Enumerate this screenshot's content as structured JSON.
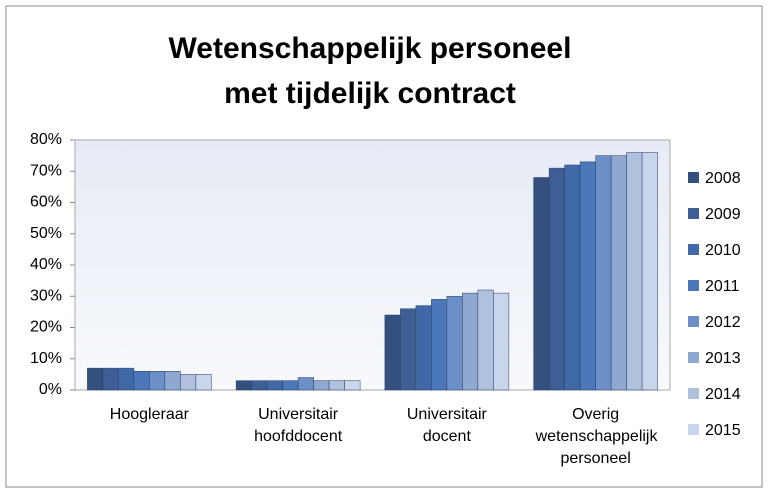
{
  "chart_data": {
    "type": "bar",
    "title": [
      "Wetenschappelijk personeel",
      "met tijdelijk contract"
    ],
    "categories": [
      "Hoogleraar",
      "Universitair hoofddocent",
      "Universitair docent",
      "Overig wetenschappelijk personeel"
    ],
    "series": [
      {
        "name": "2008",
        "color": "#34507f",
        "values": [
          7,
          3,
          24,
          68
        ]
      },
      {
        "name": "2009",
        "color": "#3d5f96",
        "values": [
          7,
          3,
          26,
          71
        ]
      },
      {
        "name": "2010",
        "color": "#4169a8",
        "values": [
          7,
          3,
          27,
          72
        ]
      },
      {
        "name": "2011",
        "color": "#4a78b9",
        "values": [
          6,
          3,
          29,
          73
        ]
      },
      {
        "name": "2012",
        "color": "#6c8fc7",
        "values": [
          6,
          4,
          30,
          75
        ]
      },
      {
        "name": "2013",
        "color": "#8fa8d0",
        "values": [
          6,
          3,
          31,
          75
        ]
      },
      {
        "name": "2014",
        "color": "#b0c1de",
        "values": [
          5,
          3,
          32,
          76
        ]
      },
      {
        "name": "2015",
        "color": "#c9d5ea",
        "values": [
          5,
          3,
          31,
          76
        ]
      }
    ],
    "ylim": [
      0,
      80
    ],
    "yticks": [
      {
        "value": 0,
        "label": "0%"
      },
      {
        "value": 10,
        "label": "10%"
      },
      {
        "value": 20,
        "label": "20%"
      },
      {
        "value": 30,
        "label": "30%"
      },
      {
        "value": 40,
        "label": "40%"
      },
      {
        "value": 50,
        "label": "50%"
      },
      {
        "value": 60,
        "label": "60%"
      },
      {
        "value": 70,
        "label": "70%"
      },
      {
        "value": 80,
        "label": "80%"
      }
    ],
    "legend": "right"
  }
}
